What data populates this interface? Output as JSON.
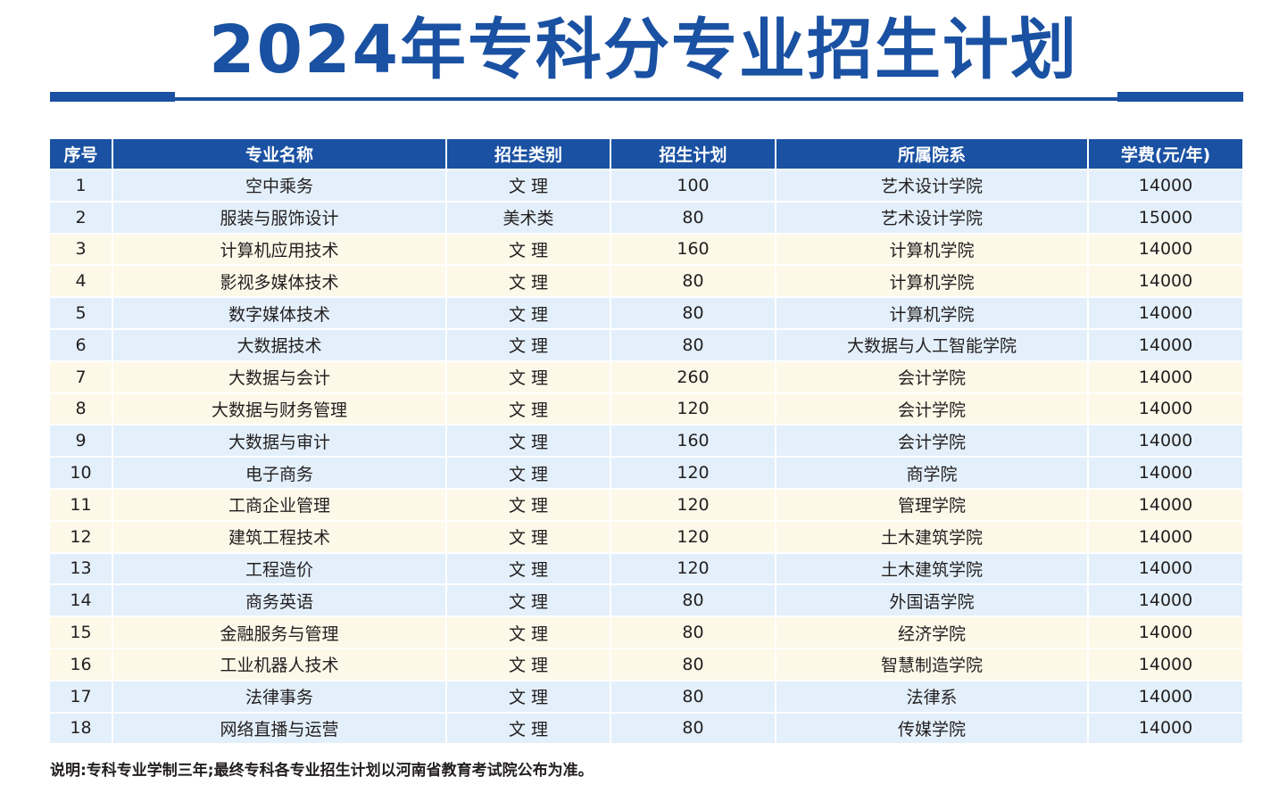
{
  "title": "2024年专科分专业招生计划",
  "table": {
    "headers": [
      "序号",
      "专业名称",
      "招生类别",
      "招生计划",
      "所属院系",
      "学费(元/年)"
    ],
    "rows": [
      [
        "1",
        "空中乘务",
        "文 理",
        "100",
        "艺术设计学院",
        "14000"
      ],
      [
        "2",
        "服装与服饰设计",
        "美术类",
        "80",
        "艺术设计学院",
        "15000"
      ],
      [
        "3",
        "计算机应用技术",
        "文 理",
        "160",
        "计算机学院",
        "14000"
      ],
      [
        "4",
        "影视多媒体技术",
        "文 理",
        "80",
        "计算机学院",
        "14000"
      ],
      [
        "5",
        "数字媒体技术",
        "文 理",
        "80",
        "计算机学院",
        "14000"
      ],
      [
        "6",
        "大数据技术",
        "文 理",
        "80",
        "大数据与人工智能学院",
        "14000"
      ],
      [
        "7",
        "大数据与会计",
        "文 理",
        "260",
        "会计学院",
        "14000"
      ],
      [
        "8",
        "大数据与财务管理",
        "文 理",
        "120",
        "会计学院",
        "14000"
      ],
      [
        "9",
        "大数据与审计",
        "文 理",
        "160",
        "会计学院",
        "14000"
      ],
      [
        "10",
        "电子商务",
        "文 理",
        "120",
        "商学院",
        "14000"
      ],
      [
        "11",
        "工商企业管理",
        "文 理",
        "120",
        "管理学院",
        "14000"
      ],
      [
        "12",
        "建筑工程技术",
        "文 理",
        "120",
        "土木建筑学院",
        "14000"
      ],
      [
        "13",
        "工程造价",
        "文 理",
        "120",
        "土木建筑学院",
        "14000"
      ],
      [
        "14",
        "商务英语",
        "文 理",
        "80",
        "外国语学院",
        "14000"
      ],
      [
        "15",
        "金融服务与管理",
        "文 理",
        "80",
        "经济学院",
        "14000"
      ],
      [
        "16",
        "工业机器人技术",
        "文 理",
        "80",
        "智慧制造学院",
        "14000"
      ],
      [
        "17",
        "法律事务",
        "文 理",
        "80",
        "法律系",
        "14000"
      ],
      [
        "18",
        "网络直播与运营",
        "文 理",
        "80",
        "传媒学院",
        "14000"
      ]
    ]
  },
  "note": "说明:专科专业学制三年;最终专科各专业招生计划以河南省教育考试院公布为准。",
  "colors": {
    "primary_blue": "#1a51a2",
    "row_blue": "#e3f0fb",
    "row_cream": "#fdf8e8"
  }
}
